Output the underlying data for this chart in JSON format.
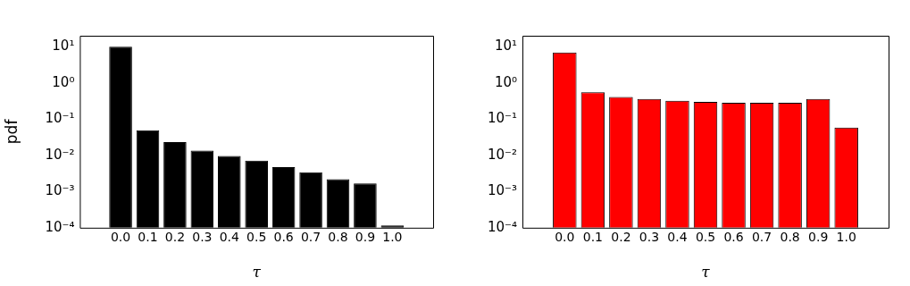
{
  "chart_data": [
    {
      "type": "bar",
      "xlabel": "τ",
      "ylabel": "pdf",
      "categories": [
        "0.0",
        "0.1",
        "0.2",
        "0.3",
        "0.4",
        "0.5",
        "0.6",
        "0.7",
        "0.8",
        "0.9",
        "1.0"
      ],
      "values": [
        10,
        0.049,
        0.023,
        0.0135,
        0.0096,
        0.0071,
        0.0047,
        0.0034,
        0.0022,
        0.00166,
        0.000115
      ],
      "color": "#000000",
      "log": true,
      "ylim": [
        0.0001,
        20
      ],
      "yticks": [
        {
          "value": 0.0001,
          "label": "10⁻⁴"
        },
        {
          "value": 0.001,
          "label": "10⁻³"
        },
        {
          "value": 0.01,
          "label": "10⁻²"
        },
        {
          "value": 0.1,
          "label": "10⁻¹"
        },
        {
          "value": 1,
          "label": "10⁰"
        },
        {
          "value": 10,
          "label": "10¹"
        }
      ],
      "grid": false,
      "legend": false
    },
    {
      "type": "bar",
      "xlabel": "τ",
      "categories": [
        "0.0",
        "0.1",
        "0.2",
        "0.3",
        "0.4",
        "0.5",
        "0.6",
        "0.7",
        "0.8",
        "0.9",
        "1.0"
      ],
      "values": [
        6.9,
        0.55,
        0.41,
        0.36,
        0.32,
        0.3,
        0.28,
        0.28,
        0.28,
        0.36,
        0.058
      ],
      "color": "#ff0000",
      "log": true,
      "ylim": [
        0.0001,
        20
      ],
      "yticks": [
        {
          "value": 0.0001,
          "label": "10⁻⁴"
        },
        {
          "value": 0.001,
          "label": "10⁻³"
        },
        {
          "value": 0.01,
          "label": "10⁻²"
        },
        {
          "value": 0.1,
          "label": "10⁻¹"
        },
        {
          "value": 1,
          "label": "10⁰"
        },
        {
          "value": 10,
          "label": "10¹"
        }
      ],
      "grid": false,
      "legend": false
    }
  ]
}
